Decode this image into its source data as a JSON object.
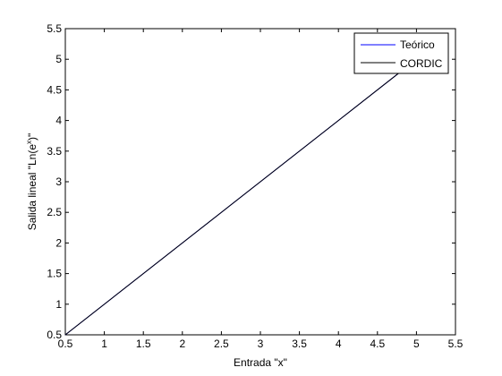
{
  "chart_data": {
    "type": "line",
    "xlabel": "Entrada \"x\"",
    "ylabel_pre": "Salida lineal \"Ln(e",
    "ylabel_sup": "x",
    "ylabel_post": ")\"",
    "xlim": [
      0.5,
      5.5
    ],
    "ylim": [
      0.5,
      5.5
    ],
    "xticks": [
      0.5,
      1,
      1.5,
      2,
      2.5,
      3,
      3.5,
      4,
      4.5,
      5,
      5.5
    ],
    "yticks": [
      0.5,
      1,
      1.5,
      2,
      2.5,
      3,
      3.5,
      4,
      4.5,
      5,
      5.5
    ],
    "xtick_labels": [
      "0.5",
      "1",
      "1.5",
      "2",
      "2.5",
      "3",
      "3.5",
      "4",
      "4.5",
      "5",
      "5.5"
    ],
    "ytick_labels": [
      "0.5",
      "1",
      "1.5",
      "2",
      "2.5",
      "3",
      "3.5",
      "4",
      "4.5",
      "5",
      "5.5"
    ],
    "grid": false,
    "legend_position": "top-right",
    "series": [
      {
        "name": "Teórico",
        "color": "#0000ff",
        "x": [
          0.5,
          5.0
        ],
        "y": [
          0.5,
          5.0
        ]
      },
      {
        "name": "CORDIC",
        "color": "#000000",
        "x": [
          0.5,
          5.0
        ],
        "y": [
          0.5,
          5.0
        ]
      }
    ]
  }
}
